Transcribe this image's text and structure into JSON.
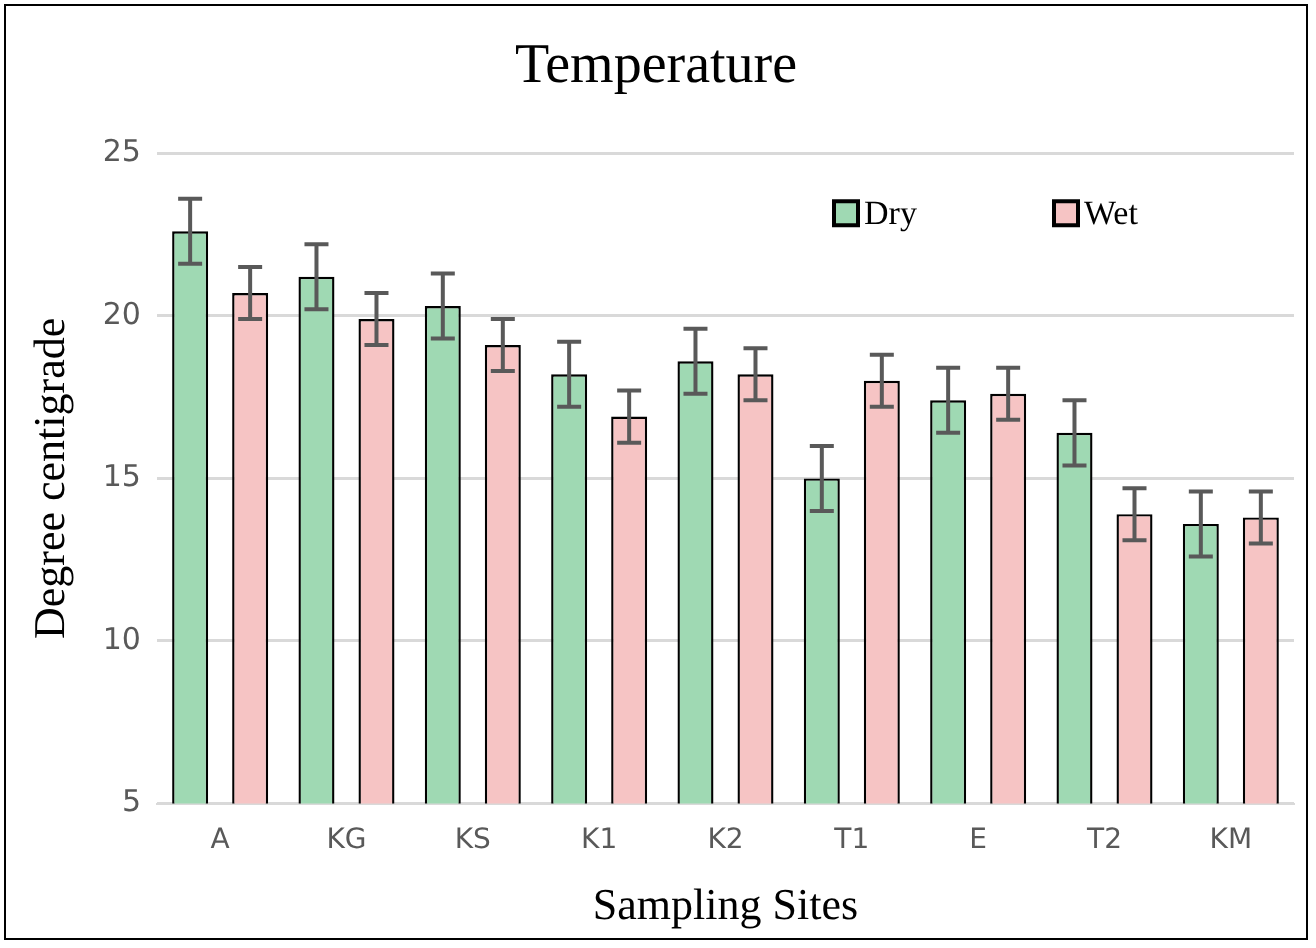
{
  "chart_data": {
    "type": "bar",
    "title": "Temperature",
    "xlabel": "Sampling Sites",
    "ylabel": "Degree centigrade",
    "categories": [
      "A",
      "KG",
      "KS",
      "K1",
      "K2",
      "T1",
      "E",
      "T2",
      "KM"
    ],
    "series": [
      {
        "name": "Dry",
        "color": "#9fd9b3",
        "values": [
          22.6,
          21.2,
          20.3,
          18.2,
          18.6,
          15.0,
          17.4,
          16.4,
          13.6
        ],
        "errors": [
          1.0,
          1.0,
          1.0,
          1.0,
          1.0,
          1.0,
          1.0,
          1.0,
          1.0
        ]
      },
      {
        "name": "Wet",
        "color": "#f6c4c4",
        "values": [
          20.7,
          19.9,
          19.1,
          16.9,
          18.2,
          18.0,
          17.6,
          13.9,
          13.8
        ],
        "errors": [
          0.8,
          0.8,
          0.8,
          0.8,
          0.8,
          0.8,
          0.8,
          0.8,
          0.8
        ]
      }
    ],
    "ylim": [
      5,
      25
    ],
    "yticks": [
      5,
      10,
      15,
      20,
      25
    ],
    "grid": "y",
    "legend": "top right"
  }
}
